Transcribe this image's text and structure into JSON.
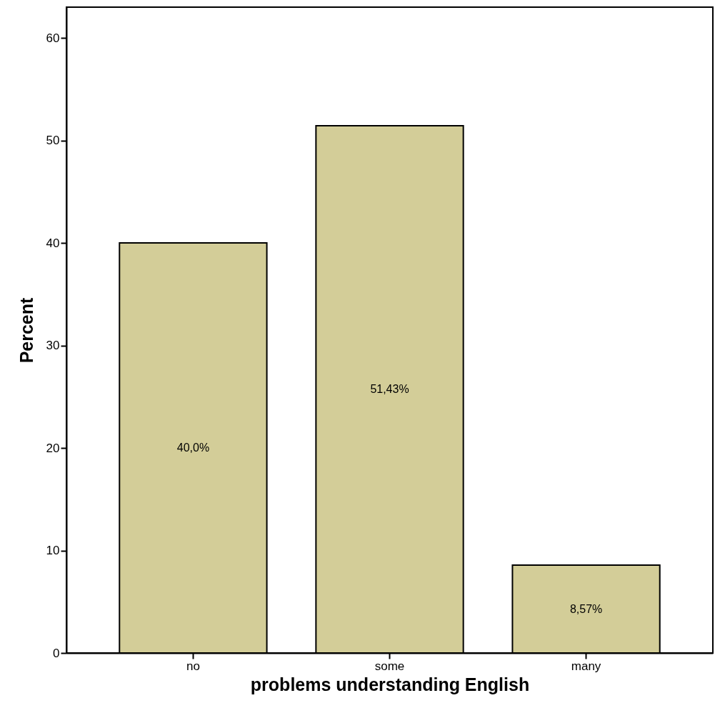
{
  "chart_data": {
    "type": "bar",
    "xlabel": "problems understanding English",
    "ylabel": "Percent",
    "categories": [
      "no",
      "some",
      "many"
    ],
    "values": [
      40.0,
      51.43,
      8.57
    ],
    "value_labels": [
      "40,0%",
      "51,43%",
      "8,57%"
    ],
    "color": "#d3cd98",
    "ylim": [
      0,
      63
    ],
    "yticks": [
      0,
      10,
      20,
      30,
      40,
      50,
      60
    ]
  }
}
